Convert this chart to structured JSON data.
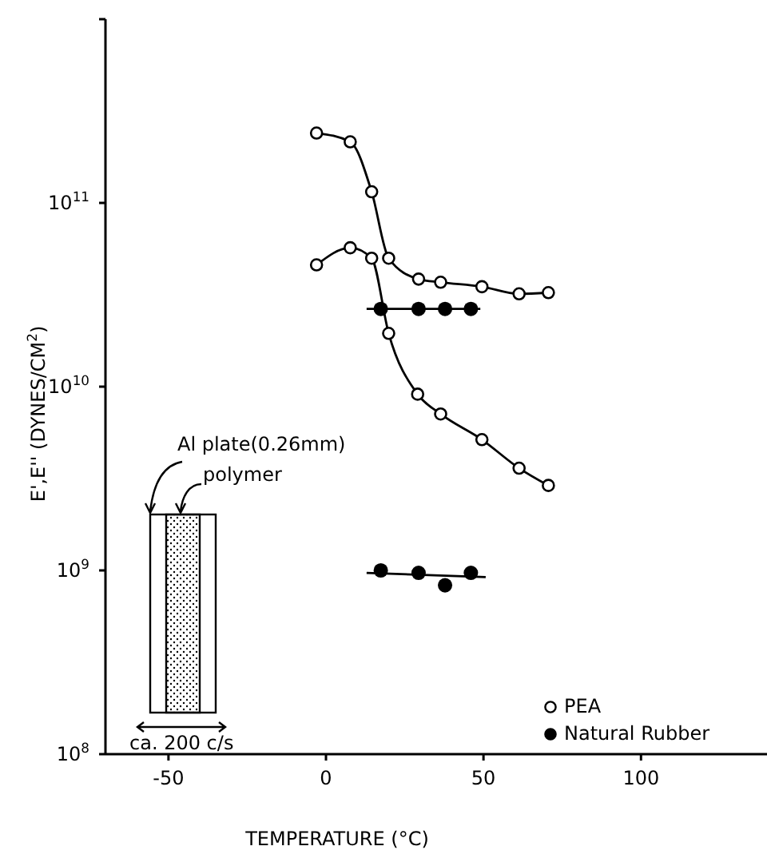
{
  "chart_data": {
    "type": "line",
    "xlabel": "TEMPERATURE (°C)",
    "ylabel": "E',E'' (DYNES/CM$^{2}$)",
    "log": "y",
    "xlim": [
      -70,
      140
    ],
    "xticks": [
      -50,
      0,
      50,
      100
    ],
    "ylim": [
      100000000,
      1000000000000
    ],
    "yticks": [
      {
        "value": 100000000,
        "label": "10$^{8}$"
      },
      {
        "value": 1000000000,
        "label": "10$^{9}$"
      },
      {
        "value": 10000000000,
        "label": "10$^{10}$"
      },
      {
        "value": 100000000000,
        "label": "10$^{11}$"
      },
      {
        "value": 1000000000000,
        "label": null
      }
    ],
    "grid": false,
    "legend": "bottom right",
    "series": [
      {
        "name": "PEA",
        "marker": "circle",
        "color": "#000000",
        "x": [
          -3,
          7.7,
          14.5,
          19.9,
          29.4,
          36.4,
          49.5,
          61.3,
          70.6
        ],
        "values": [
          240000000000,
          215000000000,
          115000000000,
          50000000000,
          38500000000,
          37000000000,
          35000000000,
          32000000000,
          32500000000
        ]
      },
      {
        "marker": "circle",
        "color": "#000000",
        "x": [
          -3,
          7.7,
          14.5,
          19.9,
          29.1,
          36.4,
          49.5,
          61.3,
          70.6
        ],
        "values": [
          46000000000,
          57000000000,
          50000000000,
          19500000000,
          9100000000,
          7100000000,
          5150000000,
          3600000000,
          2900000000
        ]
      },
      {
        "name": "Natural Rubber",
        "type": "scatter",
        "marker": "circle",
        "color": "#000000",
        "x": [
          17.4,
          29.4,
          37.8,
          46
        ],
        "values": [
          26500000000,
          26500000000,
          26500000000,
          26500000000
        ]
      },
      {
        "type": "scatter",
        "marker": "circle",
        "color": "#000000",
        "x": [
          17.4,
          29.4,
          37.8,
          46
        ],
        "values": [
          1000000000,
          970000000,
          830000000,
          970000000
        ]
      },
      {
        "type": "line",
        "marker": "none",
        "color": "#000000",
        "x": [
          12.9,
          49
        ],
        "values": [
          26500000000,
          26500000000
        ]
      },
      {
        "type": "line",
        "marker": "none",
        "color": "#000000",
        "x": [
          12.9,
          50.7
        ],
        "values": [
          970000000,
          920000000
        ]
      }
    ],
    "annotations": [
      "Al plate(0.26mm)",
      "polymer",
      "ca. 200 c/s"
    ]
  }
}
